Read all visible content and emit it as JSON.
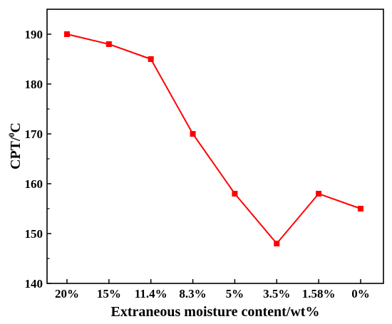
{
  "chart_data": {
    "type": "line",
    "categories": [
      "20%",
      "15%",
      "11.4%",
      "8.3%",
      "5%",
      "3.5%",
      "1.58%",
      "0%"
    ],
    "series": [
      {
        "values": [
          190,
          188,
          185,
          170,
          158,
          148,
          158,
          155
        ],
        "color": "#ff0000",
        "marker": "square"
      }
    ],
    "xlabel": "Extraneous moisture content/wt%",
    "ylabel_main": "CPT/",
    "ylabel_sup": "0",
    "ylabel_unit": "C",
    "ylim": [
      140,
      195
    ],
    "yticks": [
      140,
      150,
      160,
      170,
      180,
      190
    ],
    "grid": false,
    "legend": "none"
  }
}
